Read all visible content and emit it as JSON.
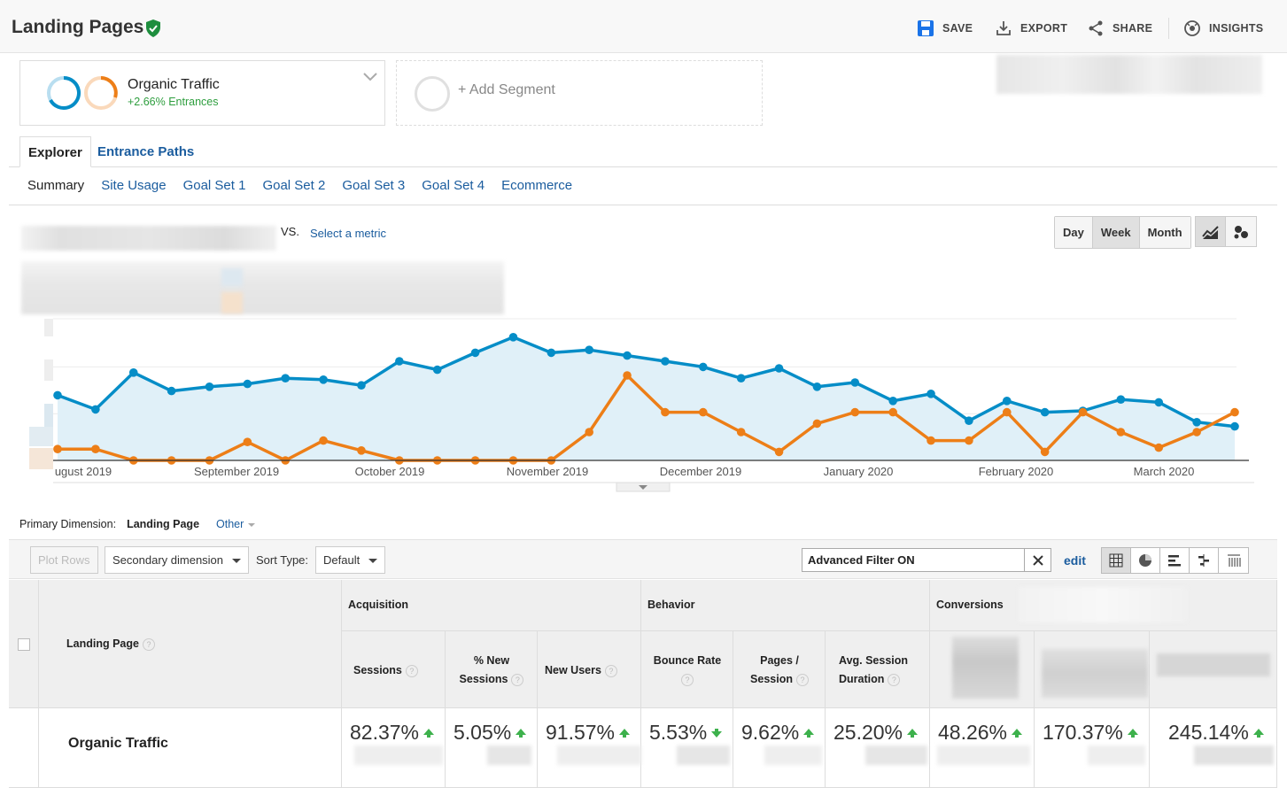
{
  "header": {
    "title": "Landing Pages",
    "actions": {
      "save": "SAVE",
      "export": "EXPORT",
      "share": "SHARE",
      "insights": "INSIGHTS"
    }
  },
  "segments": {
    "primary": {
      "name": "Organic Traffic",
      "sub": "+2.66% Entrances"
    },
    "add_label": "+ Add Segment"
  },
  "tabs": {
    "active": "Explorer",
    "other": "Entrance Paths"
  },
  "subtabs": [
    "Summary",
    "Site Usage",
    "Goal Set 1",
    "Goal Set 2",
    "Goal Set 3",
    "Goal Set 4",
    "Ecommerce"
  ],
  "chart_controls": {
    "vs": "VS.",
    "select_metric": "Select a metric",
    "periods": [
      "Day",
      "Week",
      "Month"
    ],
    "selected_period": "Week"
  },
  "chart_data": {
    "type": "line",
    "x_labels": [
      "ugust 2019",
      "September 2019",
      "October 2019",
      "November 2019",
      "December 2019",
      "January 2020",
      "February 2020",
      "March 2020"
    ],
    "ylim": [
      0,
      100
    ],
    "series": [
      {
        "color": "#058dc7",
        "values": [
          46,
          36,
          62,
          49,
          52,
          54,
          58,
          57,
          53,
          70,
          64,
          76,
          87,
          76,
          78,
          74,
          70,
          66,
          58,
          65,
          52,
          55,
          42,
          47,
          28,
          42,
          34,
          35,
          43,
          41,
          27,
          24
        ]
      },
      {
        "color": "#ed7e17",
        "values": [
          8,
          8,
          0,
          0,
          0,
          13,
          0,
          14,
          7,
          0,
          0,
          0,
          0,
          0,
          20,
          60,
          34,
          34,
          20,
          6,
          26,
          34,
          34,
          14,
          14,
          34,
          6,
          34,
          20,
          9,
          20,
          34
        ]
      }
    ],
    "grid": true,
    "legend": "none"
  },
  "primary_dimension": {
    "label": "Primary Dimension:",
    "value": "Landing Page",
    "other": "Other"
  },
  "toolbar": {
    "plot_rows": "Plot Rows",
    "secondary_dimension": "Secondary dimension",
    "sort_label": "Sort Type:",
    "sort_value": "Default",
    "filter_text": "Advanced Filter ON",
    "edit": "edit"
  },
  "table": {
    "groups": {
      "acquisition": "Acquisition",
      "behavior": "Behavior",
      "conversions": "Conversions"
    },
    "headers": {
      "landing_page": "Landing Page",
      "sessions": "Sessions",
      "new_sessions_1": "% New",
      "new_sessions_2": "Sessions",
      "new_users": "New Users",
      "bounce_rate": "Bounce Rate",
      "pages_session_1": "Pages /",
      "pages_session_2": "Session",
      "avg_duration_1": "Avg. Session",
      "avg_duration_2": "Duration"
    },
    "row": {
      "label": "Organic Traffic",
      "values": [
        "82.37%",
        "5.05%",
        "91.57%",
        "5.53%",
        "9.62%",
        "25.20%",
        "48.26%",
        "170.37%",
        "245.14%"
      ]
    }
  }
}
